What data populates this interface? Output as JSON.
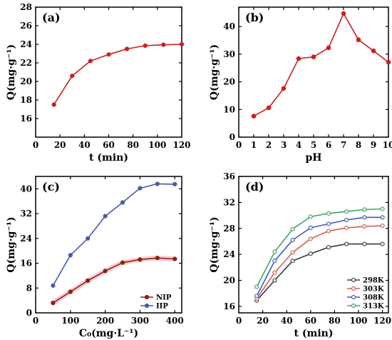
{
  "chart_data": [
    {
      "type": "line",
      "panel_label": "(a)",
      "xlabel": "t (min)",
      "ylabel": "Q(mg·g⁻¹)",
      "xlim": [
        0,
        120
      ],
      "ylim": [
        14,
        28
      ],
      "xticks": [
        "0",
        "20",
        "40",
        "60",
        "80",
        "100",
        "120"
      ],
      "yticks": [
        "16",
        "18",
        "20",
        "22",
        "24",
        "26",
        "28"
      ],
      "grid": false,
      "legend": null,
      "series": [
        {
          "name": "",
          "color": "#cc1f1f",
          "points": [
            [
              15,
              17.5
            ],
            [
              30,
              20.6
            ],
            [
              45,
              22.2
            ],
            [
              60,
              22.9
            ],
            [
              75,
              23.5
            ],
            [
              90,
              23.85
            ],
            [
              105,
              23.95
            ],
            [
              120,
              24.0
            ]
          ]
        }
      ]
    },
    {
      "type": "line",
      "panel_label": "(b)",
      "xlabel": "pH",
      "ylabel": "Q(mg·g⁻¹)",
      "xlim": [
        0,
        10
      ],
      "ylim": [
        0,
        47
      ],
      "xticks": [
        "0",
        "1",
        "2",
        "3",
        "4",
        "5",
        "6",
        "7",
        "8",
        "9",
        "10"
      ],
      "yticks": [
        "0",
        "10",
        "20",
        "30",
        "40"
      ],
      "grid": false,
      "legend": null,
      "series": [
        {
          "name": "",
          "color": "#cc1f1f",
          "points": [
            [
              1,
              7.6
            ],
            [
              2,
              10.6
            ],
            [
              3,
              17.6
            ],
            [
              4,
              28.4
            ],
            [
              5,
              29.0
            ],
            [
              6,
              32.3
            ],
            [
              7,
              44.7
            ],
            [
              8,
              35.2
            ],
            [
              9,
              31.2
            ],
            [
              10,
              27.1
            ]
          ]
        }
      ]
    },
    {
      "type": "line",
      "panel_label": "(c)",
      "xlabel": "C₀(mg·L⁻¹)",
      "ylabel": "Q(mg·g⁻¹)",
      "xlim": [
        0,
        420
      ],
      "ylim": [
        0,
        44
      ],
      "xticks": [
        "0",
        "100",
        "200",
        "300",
        "400"
      ],
      "yticks": [
        "0",
        "8",
        "16",
        "24",
        "32",
        "40"
      ],
      "grid": false,
      "legend": "bottom-right",
      "series": [
        {
          "name": "NIP",
          "color": "#8b2500",
          "band_color": "#f4a0c0",
          "points": [
            [
              50,
              3.2
            ],
            [
              100,
              6.8
            ],
            [
              150,
              10.4
            ],
            [
              200,
              13.5
            ],
            [
              250,
              16.2
            ],
            [
              300,
              17.2
            ],
            [
              350,
              17.7
            ],
            [
              400,
              17.4
            ]
          ]
        },
        {
          "name": "IIP",
          "color": "#4a5ba8",
          "points": [
            [
              50,
              8.8
            ],
            [
              100,
              18.6
            ],
            [
              150,
              24.0
            ],
            [
              200,
              31.2
            ],
            [
              250,
              35.6
            ],
            [
              300,
              40.2
            ],
            [
              350,
              41.6
            ],
            [
              400,
              41.5
            ]
          ]
        }
      ]
    },
    {
      "type": "line",
      "panel_label": "(d)",
      "xlabel": "t (min)",
      "ylabel": "Q(mg·g⁻¹)",
      "xlim": [
        0,
        125
      ],
      "ylim": [
        15,
        36
      ],
      "xticks": [
        "0",
        "20",
        "40",
        "60",
        "80",
        "100",
        "120"
      ],
      "yticks": [
        "16",
        "20",
        "24",
        "28",
        "32",
        "36"
      ],
      "grid": false,
      "legend": "bottom-right",
      "series": [
        {
          "name": "298K",
          "color": "#3a3a3a",
          "points": [
            [
              15,
              16.9
            ],
            [
              30,
              20.0
            ],
            [
              45,
              23.0
            ],
            [
              60,
              24.1
            ],
            [
              75,
              25.1
            ],
            [
              90,
              25.6
            ],
            [
              105,
              25.6
            ],
            [
              120,
              25.6
            ]
          ]
        },
        {
          "name": "303K",
          "color": "#d4604a",
          "points": [
            [
              15,
              17.2
            ],
            [
              30,
              21.2
            ],
            [
              45,
              24.3
            ],
            [
              60,
              26.4
            ],
            [
              75,
              27.6
            ],
            [
              90,
              28.1
            ],
            [
              105,
              28.3
            ],
            [
              120,
              28.4
            ]
          ]
        },
        {
          "name": "308K",
          "color": "#3b5bbf",
          "points": [
            [
              15,
              17.6
            ],
            [
              30,
              23.0
            ],
            [
              45,
              26.2
            ],
            [
              60,
              28.1
            ],
            [
              75,
              28.7
            ],
            [
              90,
              29.3
            ],
            [
              105,
              29.7
            ],
            [
              120,
              29.7
            ]
          ]
        },
        {
          "name": "313K",
          "color": "#3aa86b",
          "points": [
            [
              15,
              19.0
            ],
            [
              30,
              24.4
            ],
            [
              45,
              27.9
            ],
            [
              60,
              29.8
            ],
            [
              75,
              30.3
            ],
            [
              90,
              30.6
            ],
            [
              105,
              30.9
            ],
            [
              120,
              31.0
            ]
          ]
        }
      ]
    }
  ]
}
